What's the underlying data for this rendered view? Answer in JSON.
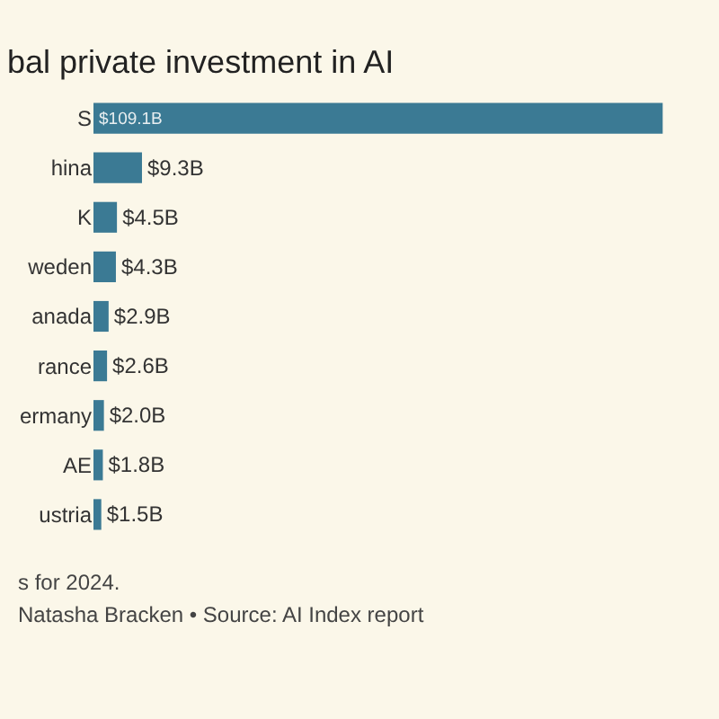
{
  "chart_data": {
    "type": "bar",
    "orientation": "horizontal",
    "title": "bal private investment in AI",
    "categories": [
      "S",
      "hina",
      "K",
      "weden",
      "anada",
      "rance",
      "ermany",
      "AE",
      "ustria"
    ],
    "values": [
      109.1,
      9.3,
      4.5,
      4.3,
      2.9,
      2.6,
      2.0,
      1.8,
      1.5
    ],
    "value_labels": [
      "$109.1B",
      "$9.3B",
      "$4.5B",
      "$4.3B",
      "$2.9B",
      "$2.6B",
      "$2.0B",
      "$1.8B",
      "$1.5B"
    ],
    "color": "#3b7a94",
    "annotations": [
      "s for 2024.",
      "Natasha Bracken • Source: AI Index report"
    ]
  }
}
